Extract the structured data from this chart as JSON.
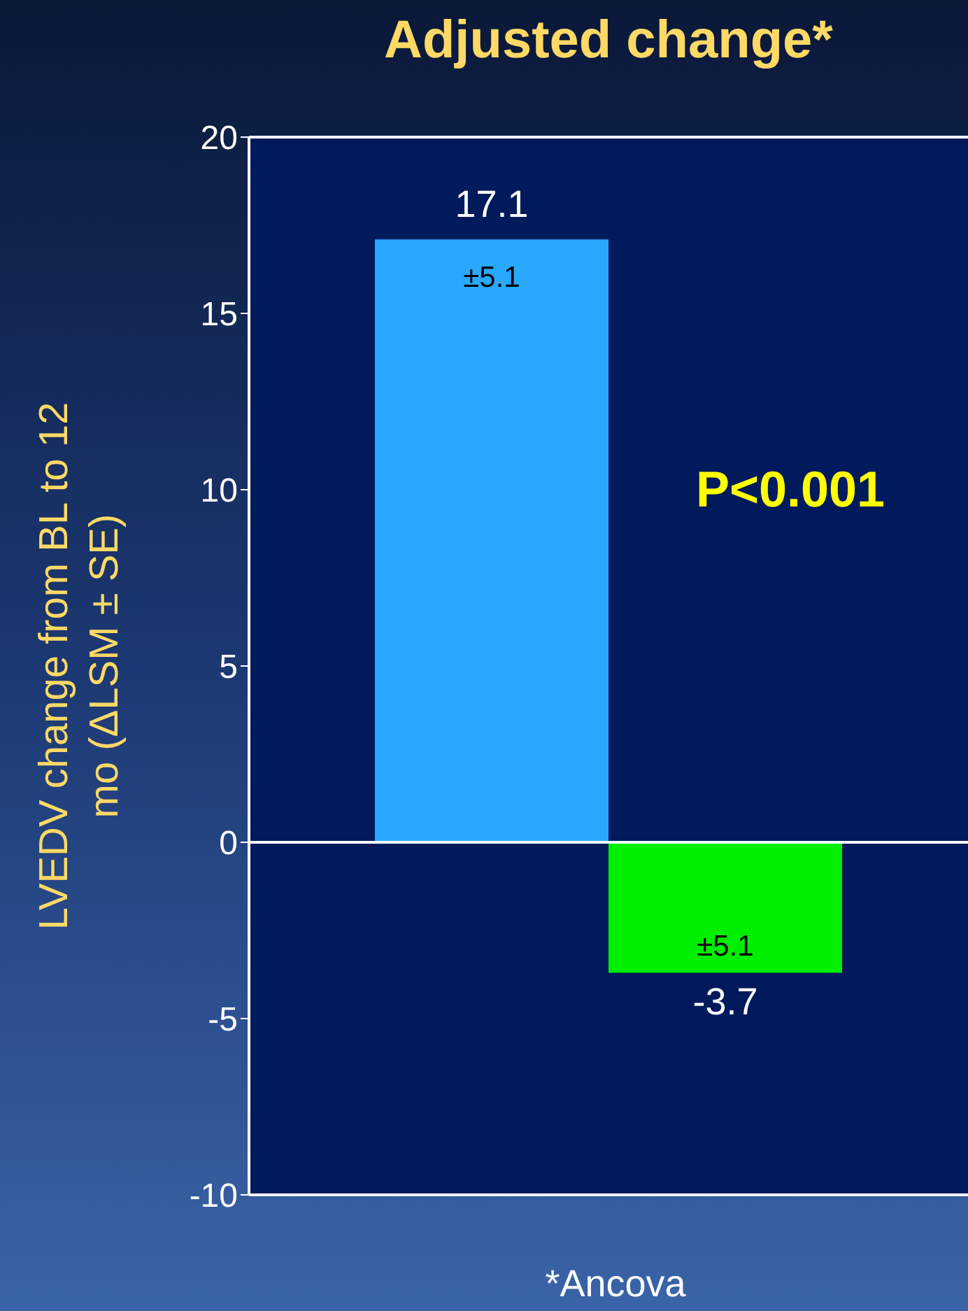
{
  "chart_data": {
    "type": "bar",
    "title": "Adjusted change*",
    "ylabel": "LVEDV change from BL to 12 mo (ΔLSM ± SE)",
    "categories": [
      null,
      null
    ],
    "values": [
      17.1,
      -3.7
    ],
    "colors": [
      "#29a8ff",
      "#00ee00"
    ],
    "ylim": [
      -10,
      20
    ],
    "yticks": [
      -10,
      -5,
      0,
      5,
      10,
      15,
      20
    ],
    "data_labels": true,
    "annotations": [
      {
        "text": "±5.1",
        "y": 17.1
      },
      {
        "text": "±5.1",
        "y": -3.7
      },
      "P<0.001",
      "*Ancova"
    ]
  }
}
